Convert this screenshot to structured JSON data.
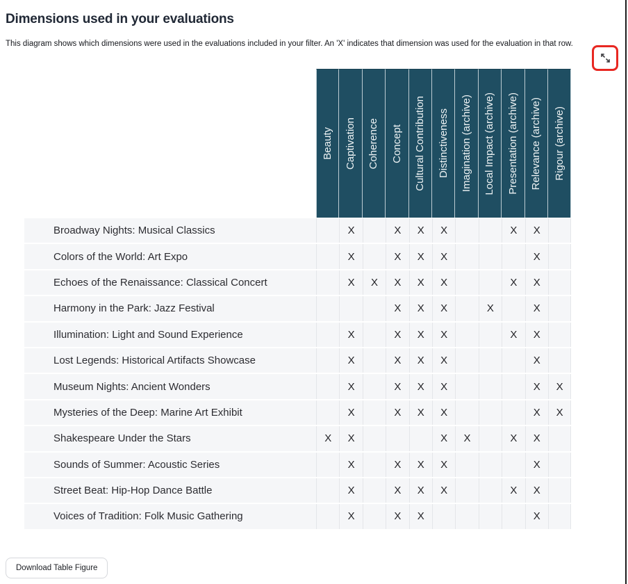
{
  "page": {
    "title": "Dimensions used in your evaluations",
    "subtitle": "This diagram shows which dimensions were used in the evaluations included in your filter. An 'X' indicates that dimension was used for the evaluation in that row.",
    "download_button_label": "Download Table Figure"
  },
  "icons": {
    "expand_button": "expand-diagonal-arrows-icon"
  },
  "colors": {
    "header_bg": "#1F4E62",
    "header_text": "#EEF3F4",
    "row_bg": "#F5F6F8",
    "row_text": "#2C2C31",
    "mark_text": "#232327",
    "grid_line": "#E4E6E9",
    "header_grid_line": "#BDCCD3",
    "annotation_red": "#E82721",
    "page_bg": "#FFFFFF"
  },
  "chart_data": {
    "type": "table",
    "mark_symbol": "X",
    "columns": [
      "Beauty",
      "Captivation",
      "Coherence",
      "Concept",
      "Cultural Contribution",
      "Distinctiveness",
      "Imagination (archive)",
      "Local Impact (archive)",
      "Presentation (archive)",
      "Relevance (archive)",
      "Rigour (archive)"
    ],
    "rows": [
      {
        "label": "Broadway Nights: Musical Classics",
        "marks": [
          0,
          1,
          0,
          1,
          1,
          1,
          0,
          0,
          1,
          1,
          0
        ]
      },
      {
        "label": "Colors of the World: Art Expo",
        "marks": [
          0,
          1,
          0,
          1,
          1,
          1,
          0,
          0,
          0,
          1,
          0
        ]
      },
      {
        "label": "Echoes of the Renaissance: Classical Concert",
        "marks": [
          0,
          1,
          1,
          1,
          1,
          1,
          0,
          0,
          1,
          1,
          0
        ]
      },
      {
        "label": "Harmony in the Park: Jazz Festival",
        "marks": [
          0,
          0,
          0,
          1,
          1,
          1,
          0,
          1,
          0,
          1,
          0
        ]
      },
      {
        "label": "Illumination: Light and Sound Experience",
        "marks": [
          0,
          1,
          0,
          1,
          1,
          1,
          0,
          0,
          1,
          1,
          0
        ]
      },
      {
        "label": "Lost Legends: Historical Artifacts Showcase",
        "marks": [
          0,
          1,
          0,
          1,
          1,
          1,
          0,
          0,
          0,
          1,
          0
        ]
      },
      {
        "label": "Museum Nights: Ancient Wonders",
        "marks": [
          0,
          1,
          0,
          1,
          1,
          1,
          0,
          0,
          0,
          1,
          1
        ]
      },
      {
        "label": "Mysteries of the Deep: Marine Art Exhibit",
        "marks": [
          0,
          1,
          0,
          1,
          1,
          1,
          0,
          0,
          0,
          1,
          1
        ]
      },
      {
        "label": "Shakespeare Under the Stars",
        "marks": [
          1,
          1,
          0,
          0,
          0,
          1,
          1,
          0,
          1,
          1,
          0
        ]
      },
      {
        "label": "Sounds of Summer: Acoustic Series",
        "marks": [
          0,
          1,
          0,
          1,
          1,
          1,
          0,
          0,
          0,
          1,
          0
        ]
      },
      {
        "label": "Street Beat: Hip-Hop Dance Battle",
        "marks": [
          0,
          1,
          0,
          1,
          1,
          1,
          0,
          0,
          1,
          1,
          0
        ]
      },
      {
        "label": "Voices of Tradition: Folk Music Gathering",
        "marks": [
          0,
          1,
          0,
          1,
          1,
          0,
          0,
          0,
          0,
          1,
          0
        ]
      }
    ]
  }
}
